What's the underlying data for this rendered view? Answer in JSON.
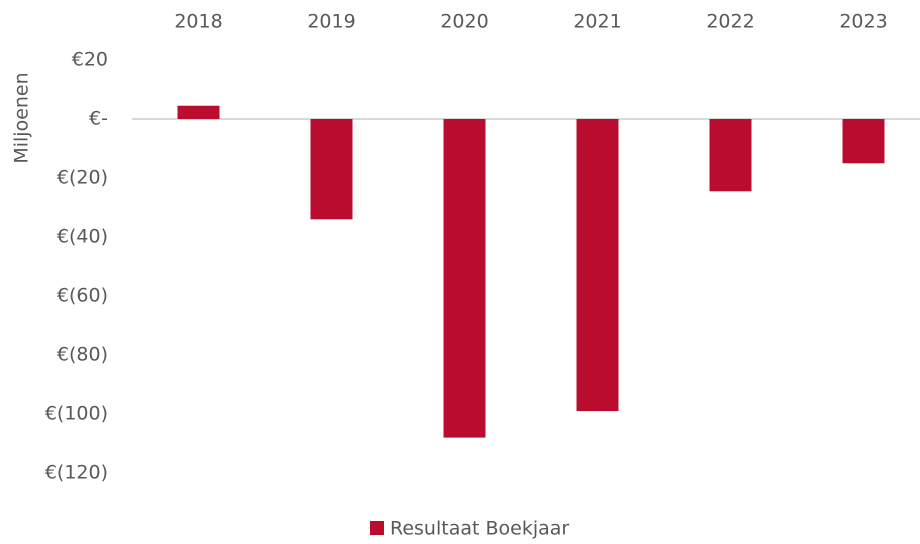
{
  "chart_data": {
    "type": "bar",
    "y_axis_label": "Miljoenen",
    "categories": [
      "2018",
      "2019",
      "2020",
      "2021",
      "2022",
      "2023"
    ],
    "series": [
      {
        "name": "Resultaat Boekjaar",
        "color": "#ba0c2f",
        "values": [
          4.5,
          -34,
          -108,
          -99,
          -24.5,
          -15
        ]
      }
    ],
    "ylim": [
      -120,
      20
    ],
    "yticks": [
      {
        "value": 20,
        "label": "€20"
      },
      {
        "value": 0,
        "label": "€-"
      },
      {
        "value": -20,
        "label": "€(20)"
      },
      {
        "value": -40,
        "label": "€(40)"
      },
      {
        "value": -60,
        "label": "€(60)"
      },
      {
        "value": -80,
        "label": "€(80)"
      },
      {
        "value": -100,
        "label": "€(100)"
      },
      {
        "value": -120,
        "label": "€(120)"
      }
    ],
    "grid": false,
    "legend": "bottom"
  }
}
